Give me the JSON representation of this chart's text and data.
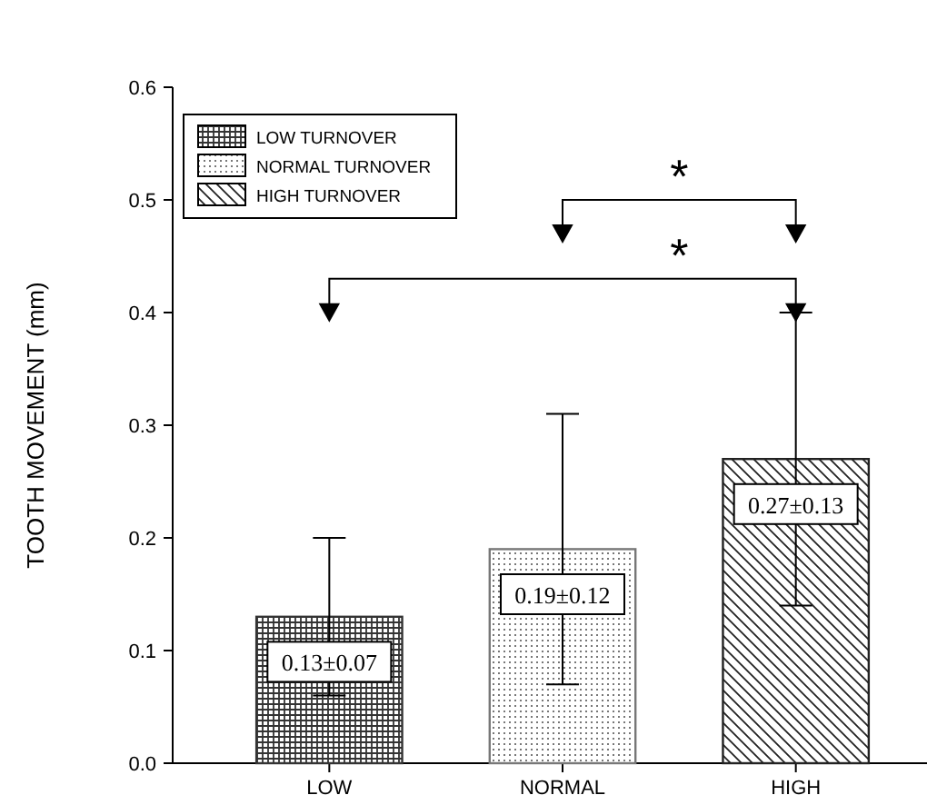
{
  "chart_data": {
    "type": "bar",
    "ylabel": "TOOTH MOVEMENT (mm)",
    "categories": [
      "LOW",
      "NORMAL",
      "HIGH"
    ],
    "series": [
      {
        "name": "LOW TURNOVER",
        "color": "#333333",
        "values": [
          0.13,
          null,
          null
        ],
        "errors": [
          0.07,
          null,
          null
        ],
        "value_labels": [
          "0.13±0.07",
          null,
          null
        ]
      },
      {
        "name": "NORMAL TURNOVER",
        "color": "#777777",
        "values": [
          null,
          0.19,
          null
        ],
        "errors": [
          null,
          0.12,
          null
        ],
        "value_labels": [
          null,
          "0.19±0.12",
          null
        ]
      },
      {
        "name": "HIGH TURNOVER",
        "color": "#222222",
        "values": [
          null,
          null,
          0.27
        ],
        "errors": [
          null,
          null,
          0.13
        ],
        "value_labels": [
          null,
          null,
          "0.27±0.13"
        ]
      }
    ],
    "ylim": [
      0,
      0.6
    ],
    "yticks": [
      {
        "value": 0,
        "label": "0.0"
      },
      0.1,
      0.2,
      0.3,
      0.4,
      0.5,
      0.6
    ],
    "annotations": [
      "*",
      "*"
    ],
    "legend": "top left",
    "grid": false
  }
}
